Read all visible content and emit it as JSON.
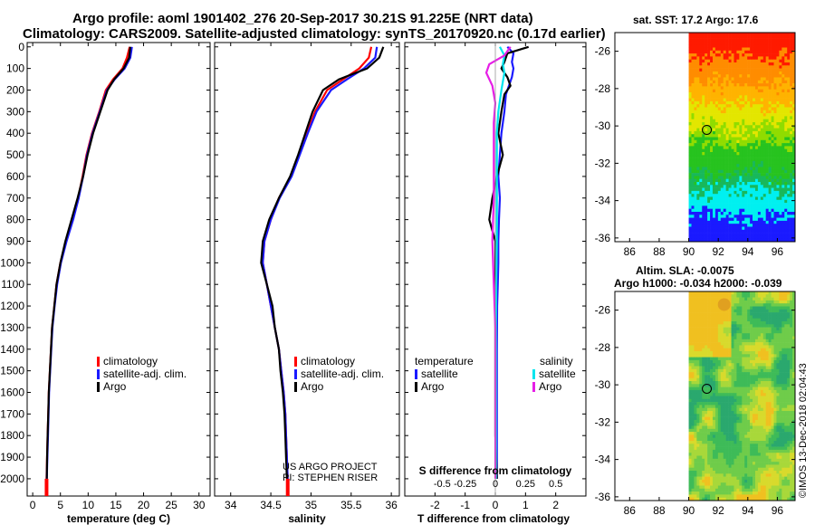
{
  "header": {
    "line1": "Argo profile: aoml 1901402_276 20-Sep-2017 30.21S 91.225E (NRT data)",
    "line2": "Climatology: CARS2009. Satellite-adjusted climatology: synTS_20170920.nc (0.17d earlier)"
  },
  "right_titles": {
    "sst": "sat. SST: 17.2 Argo: 17.6",
    "sla": "Altim. SLA: -0.0075",
    "heights": "Argo h1000: -0.034 h2000: -0.039"
  },
  "watermark": "©IMOS 13-Dec-2018 02:04:43",
  "credits": [
    "US ARGO PROJECT",
    "PI: STEPHEN RISER"
  ],
  "colors": {
    "climatology": "#ff0000",
    "satellite": "#1a1aff",
    "argo": "#000000",
    "sat_salinity": "#00e5ee",
    "argo_salinity": "#e61ee6"
  },
  "chart_data": [
    {
      "type": "line",
      "id": "temperature",
      "xlabel": "temperature (deg C)",
      "ylabel": "",
      "xlim": [
        -1,
        32
      ],
      "ylim": [
        2080,
        -20
      ],
      "xticks": [
        0,
        5,
        10,
        15,
        20,
        25,
        30
      ],
      "yticks": [
        0,
        100,
        200,
        300,
        400,
        500,
        600,
        700,
        800,
        900,
        1000,
        1100,
        1200,
        1300,
        1400,
        1500,
        1600,
        1700,
        1800,
        1900,
        2000
      ],
      "legend": [
        "climatology",
        "satellite-adj. clim.",
        "Argo"
      ],
      "series": [
        {
          "name": "climatology",
          "color": "#ff0000",
          "points": [
            [
              17.5,
              0
            ],
            [
              17,
              50
            ],
            [
              16.2,
              100
            ],
            [
              14.5,
              150
            ],
            [
              13.2,
              200
            ],
            [
              12,
              300
            ],
            [
              10.7,
              400
            ],
            [
              9.7,
              500
            ],
            [
              9,
              600
            ],
            [
              8.2,
              700
            ],
            [
              7.2,
              800
            ],
            [
              6,
              900
            ],
            [
              5,
              1000
            ],
            [
              4.3,
              1100
            ],
            [
              3.9,
              1200
            ],
            [
              3.5,
              1300
            ],
            [
              3.3,
              1400
            ],
            [
              3.1,
              1500
            ],
            [
              2.9,
              1600
            ],
            [
              2.8,
              1700
            ],
            [
              2.7,
              1800
            ],
            [
              2.6,
              1900
            ],
            [
              2.5,
              2000
            ]
          ]
        },
        {
          "name": "satellite-adj. clim.",
          "color": "#1a1aff",
          "points": [
            [
              17.9,
              0
            ],
            [
              17.6,
              50
            ],
            [
              16.6,
              100
            ],
            [
              14.8,
              150
            ],
            [
              13.4,
              200
            ],
            [
              12.1,
              300
            ],
            [
              10.8,
              400
            ],
            [
              9.8,
              500
            ],
            [
              9.1,
              600
            ],
            [
              8.3,
              700
            ],
            [
              7.3,
              800
            ],
            [
              6.1,
              900
            ],
            [
              5.1,
              1000
            ],
            [
              4.4,
              1100
            ],
            [
              3.95,
              1200
            ],
            [
              3.55,
              1300
            ],
            [
              3.35,
              1400
            ],
            [
              3.15,
              1500
            ],
            [
              2.95,
              1600
            ],
            [
              2.85,
              1700
            ],
            [
              2.75,
              1800
            ],
            [
              2.65,
              1900
            ],
            [
              2.55,
              2000
            ]
          ]
        },
        {
          "name": "Argo",
          "color": "#000000",
          "points": [
            [
              17.6,
              0
            ],
            [
              17.4,
              50
            ],
            [
              16.4,
              100
            ],
            [
              14.7,
              150
            ],
            [
              13.5,
              200
            ],
            [
              12.2,
              300
            ],
            [
              10.9,
              400
            ],
            [
              9.9,
              500
            ],
            [
              9.1,
              600
            ],
            [
              8.1,
              700
            ],
            [
              7,
              800
            ],
            [
              5.9,
              900
            ],
            [
              5,
              1000
            ],
            [
              4.3,
              1100
            ],
            [
              3.9,
              1200
            ],
            [
              3.5,
              1300
            ],
            [
              3.3,
              1400
            ],
            [
              3.1,
              1500
            ],
            [
              2.9,
              1600
            ],
            [
              2.8,
              1700
            ],
            [
              2.7,
              1800
            ],
            [
              2.6,
              1900
            ],
            [
              2.55,
              2000
            ]
          ]
        }
      ]
    },
    {
      "type": "line",
      "id": "salinity",
      "xlabel": "salinity",
      "xlim": [
        33.8,
        36.1
      ],
      "ylim": [
        2080,
        -20
      ],
      "xticks": [
        34,
        34.5,
        35,
        35.5,
        36
      ],
      "legend": [
        "climatology",
        "satellite-adj. clim.",
        "Argo"
      ],
      "series": [
        {
          "name": "climatology",
          "color": "#ff0000",
          "points": [
            [
              35.75,
              0
            ],
            [
              35.72,
              50
            ],
            [
              35.6,
              100
            ],
            [
              35.4,
              150
            ],
            [
              35.2,
              200
            ],
            [
              35.05,
              300
            ],
            [
              34.95,
              400
            ],
            [
              34.85,
              500
            ],
            [
              34.75,
              600
            ],
            [
              34.6,
              700
            ],
            [
              34.5,
              800
            ],
            [
              34.42,
              900
            ],
            [
              34.4,
              1000
            ],
            [
              34.45,
              1100
            ],
            [
              34.5,
              1200
            ],
            [
              34.55,
              1300
            ],
            [
              34.6,
              1400
            ],
            [
              34.63,
              1500
            ],
            [
              34.66,
              1600
            ],
            [
              34.68,
              1700
            ],
            [
              34.69,
              1800
            ],
            [
              34.7,
              1900
            ],
            [
              34.71,
              2000
            ]
          ]
        },
        {
          "name": "satellite-adj. clim.",
          "color": "#1a1aff",
          "points": [
            [
              35.82,
              0
            ],
            [
              35.8,
              50
            ],
            [
              35.66,
              100
            ],
            [
              35.45,
              150
            ],
            [
              35.25,
              200
            ],
            [
              35.07,
              300
            ],
            [
              34.96,
              400
            ],
            [
              34.86,
              500
            ],
            [
              34.76,
              600
            ],
            [
              34.61,
              700
            ],
            [
              34.5,
              800
            ],
            [
              34.42,
              900
            ],
            [
              34.4,
              1000
            ],
            [
              34.45,
              1100
            ],
            [
              34.5,
              1200
            ],
            [
              34.55,
              1300
            ],
            [
              34.6,
              1400
            ],
            [
              34.63,
              1500
            ],
            [
              34.66,
              1600
            ],
            [
              34.68,
              1700
            ],
            [
              34.69,
              1800
            ],
            [
              34.7,
              1900
            ],
            [
              34.71,
              2000
            ]
          ]
        },
        {
          "name": "Argo",
          "color": "#000000",
          "points": [
            [
              35.9,
              0
            ],
            [
              35.85,
              50
            ],
            [
              35.7,
              100
            ],
            [
              35.35,
              150
            ],
            [
              35.15,
              200
            ],
            [
              35.02,
              300
            ],
            [
              34.93,
              400
            ],
            [
              34.84,
              500
            ],
            [
              34.74,
              600
            ],
            [
              34.6,
              700
            ],
            [
              34.48,
              800
            ],
            [
              34.4,
              900
            ],
            [
              34.38,
              1000
            ],
            [
              34.45,
              1100
            ],
            [
              34.52,
              1200
            ],
            [
              34.55,
              1300
            ],
            [
              34.6,
              1400
            ],
            [
              34.62,
              1500
            ],
            [
              34.65,
              1600
            ],
            [
              34.67,
              1700
            ],
            [
              34.68,
              1800
            ],
            [
              34.69,
              1900
            ],
            [
              34.7,
              2000
            ]
          ]
        }
      ],
      "credits": [
        "US ARGO PROJECT",
        "PI: STEPHEN RISER"
      ]
    },
    {
      "type": "line",
      "id": "difference",
      "xlabel": "T difference from climatology",
      "xlabel_secondary": "S difference from climatology",
      "xlim": [
        -3,
        3
      ],
      "ylim": [
        2080,
        -20
      ],
      "xticks": [
        -2,
        -1,
        0,
        1,
        2
      ],
      "xtick_labels": [
        "-2",
        "-1",
        "0",
        "1",
        "2"
      ],
      "secondary_xtick_labels": [
        "-0.5",
        "-0.25",
        "0",
        "0.25",
        "0.5"
      ],
      "legend_left_title": "temperature",
      "legend_right_title": "salinity",
      "legend_left": [
        "satellite",
        "Argo"
      ],
      "legend_right": [
        "satellite",
        "Argo"
      ],
      "series": [
        {
          "name": "T satellite",
          "color": "#1a1aff",
          "points": [
            [
              0.4,
              0
            ],
            [
              0.6,
              30
            ],
            [
              0.55,
              70
            ],
            [
              0.6,
              100
            ],
            [
              0.55,
              140
            ],
            [
              0.45,
              180
            ],
            [
              0.35,
              220
            ],
            [
              0.3,
              300
            ],
            [
              0.2,
              400
            ],
            [
              0.15,
              500
            ],
            [
              0.1,
              600
            ],
            [
              0.15,
              700
            ],
            [
              0.12,
              800
            ],
            [
              0.1,
              900
            ],
            [
              0.1,
              1000
            ],
            [
              0.08,
              1100
            ],
            [
              0.06,
              1200
            ],
            [
              0.05,
              1400
            ],
            [
              0.05,
              1600
            ],
            [
              0.05,
              1800
            ],
            [
              0.05,
              2000
            ]
          ]
        },
        {
          "name": "T Argo",
          "color": "#000000",
          "points": [
            [
              1.1,
              0
            ],
            [
              0.4,
              30
            ],
            [
              0.3,
              70
            ],
            [
              0.2,
              100
            ],
            [
              0.4,
              140
            ],
            [
              0.5,
              180
            ],
            [
              0.3,
              220
            ],
            [
              0.2,
              300
            ],
            [
              0.1,
              400
            ],
            [
              0.25,
              500
            ],
            [
              0.05,
              600
            ],
            [
              -0.1,
              700
            ],
            [
              -0.2,
              800
            ],
            [
              0,
              900
            ],
            [
              0,
              1000
            ],
            [
              0,
              1100
            ],
            [
              0,
              1200
            ],
            [
              0,
              1400
            ],
            [
              0,
              1600
            ],
            [
              0,
              1800
            ],
            [
              0.05,
              2000
            ]
          ]
        },
        {
          "name": "S satellite",
          "color": "#00e5ee",
          "points": [
            [
              0.15,
              0
            ],
            [
              0.3,
              40
            ],
            [
              0.25,
              80
            ],
            [
              0.3,
              120
            ],
            [
              0.2,
              200
            ],
            [
              0.1,
              300
            ],
            [
              0.05,
              400
            ],
            [
              0.05,
              500
            ],
            [
              0.05,
              700
            ],
            [
              0.05,
              900
            ],
            [
              0.03,
              1100
            ],
            [
              0.02,
              1300
            ],
            [
              0.02,
              1500
            ],
            [
              0.02,
              1700
            ],
            [
              0.02,
              1900
            ],
            [
              0.02,
              2000
            ]
          ]
        },
        {
          "name": "S Argo",
          "color": "#e61ee6",
          "points": [
            [
              0.5,
              0
            ],
            [
              0.3,
              40
            ],
            [
              -0.2,
              80
            ],
            [
              -0.3,
              120
            ],
            [
              -0.1,
              180
            ],
            [
              0,
              260
            ],
            [
              -0.05,
              350
            ],
            [
              -0.05,
              500
            ],
            [
              -0.05,
              700
            ],
            [
              -0.1,
              900
            ],
            [
              -0.05,
              1100
            ],
            [
              0,
              1300
            ],
            [
              0,
              1500
            ],
            [
              0,
              1700
            ],
            [
              0,
              1900
            ],
            [
              0,
              2000
            ]
          ]
        }
      ]
    },
    {
      "type": "heatmap",
      "id": "sst_map",
      "title": "sat. SST: 17.2 Argo: 17.6",
      "xlim": [
        85,
        97.2
      ],
      "ylim": [
        -36.2,
        -25
      ],
      "xticks": [
        86,
        88,
        90,
        92,
        94,
        96
      ],
      "yticks": [
        -26,
        -28,
        -30,
        -32,
        -34,
        -36
      ],
      "data_lon_range": [
        90,
        97.2
      ],
      "marker": {
        "lon": 91.225,
        "lat": -30.21
      }
    },
    {
      "type": "heatmap",
      "id": "sla_map",
      "title": "Altim. SLA: -0.0075",
      "subtitle": "Argo h1000: -0.034 h2000: -0.039",
      "xlim": [
        85,
        97.2
      ],
      "ylim": [
        -36.2,
        -25
      ],
      "xticks": [
        86,
        88,
        90,
        92,
        94,
        96
      ],
      "yticks": [
        -26,
        -28,
        -30,
        -32,
        -34,
        -36
      ],
      "data_lon_range": [
        90,
        97.2
      ],
      "marker": {
        "lon": 91.225,
        "lat": -30.21
      }
    }
  ]
}
